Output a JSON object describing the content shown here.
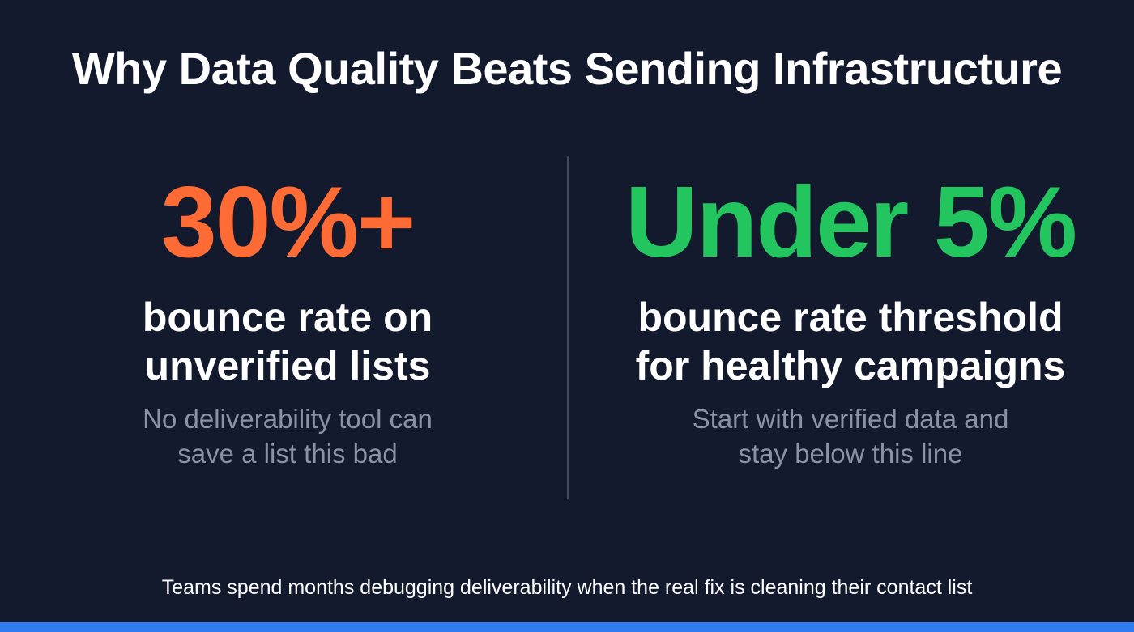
{
  "title": "Why Data Quality Beats Sending Infrastructure",
  "left": {
    "stat": "30%+",
    "stat_color": "#ff6b35",
    "label_line1": "bounce rate on",
    "label_line2": "unverified lists",
    "sub_line1": "No deliverability tool can",
    "sub_line2": "save a list this bad"
  },
  "right": {
    "stat": "Under 5%",
    "stat_color": "#22c55e",
    "label_line1": "bounce rate threshold",
    "label_line2": "for healthy campaigns",
    "sub_line1": "Start with verified data and",
    "sub_line2": "stay below this line"
  },
  "footer": "Teams spend months debugging deliverability when the real fix is cleaning their contact list",
  "colors": {
    "background": "#131a2e",
    "accent_bar": "#2f7cf0"
  }
}
